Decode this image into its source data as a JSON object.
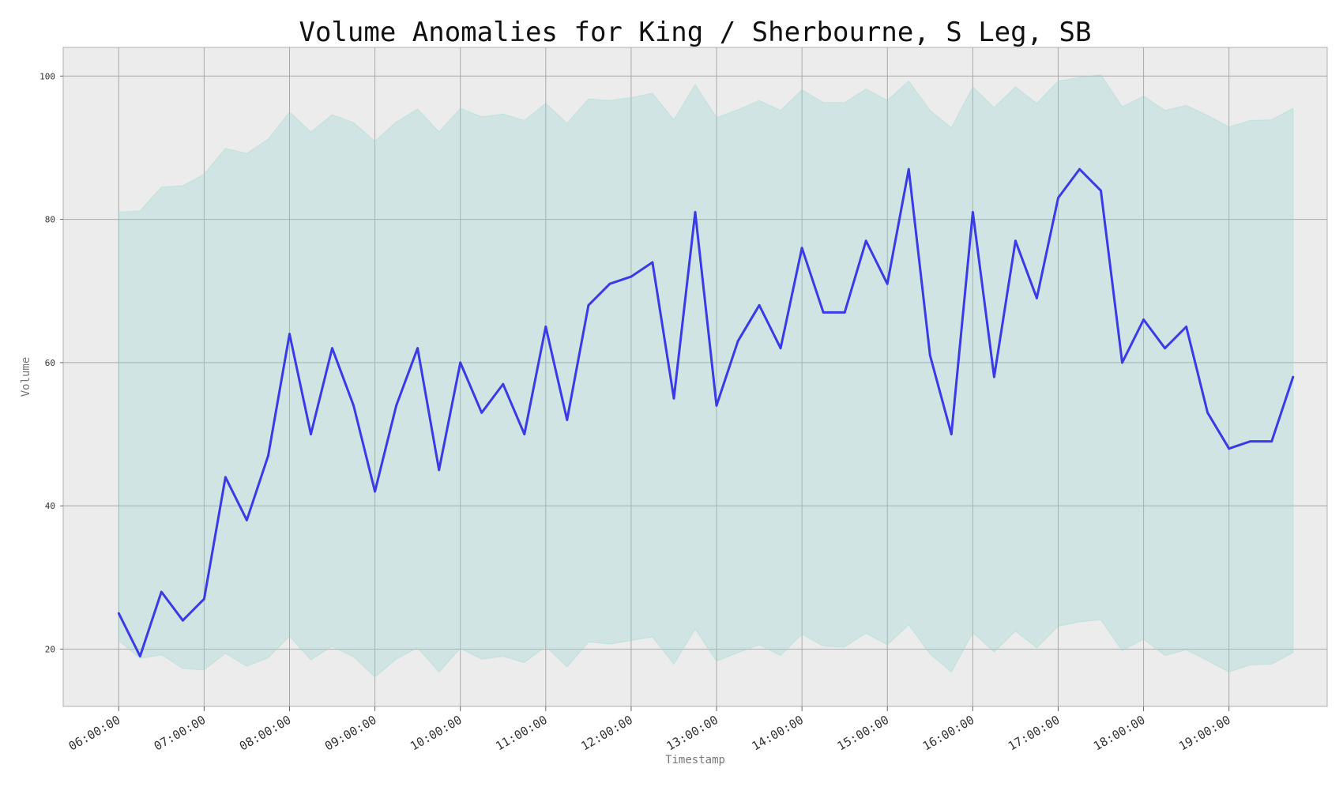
{
  "chart_data": {
    "type": "line",
    "title": "Volume Anomalies for King / Sherbourne, S Leg, SB",
    "xlabel": "Timestamp",
    "ylabel": "Volume",
    "ylim": [
      12,
      104
    ],
    "yticks": [
      20,
      40,
      60,
      80,
      100
    ],
    "x_range_hours": [
      5.35,
      20.15
    ],
    "xtick_hours": [
      6,
      7,
      8,
      9,
      10,
      11,
      12,
      13,
      14,
      15,
      16,
      17,
      18,
      19
    ],
    "xtick_labels": [
      "06:00:00",
      "07:00:00",
      "08:00:00",
      "09:00:00",
      "10:00:00",
      "11:00:00",
      "12:00:00",
      "13:00:00",
      "14:00:00",
      "15:00:00",
      "16:00:00",
      "17:00:00",
      "18:00:00",
      "19:00:00"
    ],
    "grid": true,
    "x": [
      "06:00:00",
      "06:15:00",
      "06:30:00",
      "06:45:00",
      "07:00:00",
      "07:15:00",
      "07:30:00",
      "07:45:00",
      "08:00:00",
      "08:15:00",
      "08:30:00",
      "08:45:00",
      "09:00:00",
      "09:15:00",
      "09:30:00",
      "09:45:00",
      "10:00:00",
      "10:15:00",
      "10:30:00",
      "10:45:00",
      "11:00:00",
      "11:15:00",
      "11:30:00",
      "11:45:00",
      "12:00:00",
      "12:15:00",
      "12:30:00",
      "12:45:00",
      "13:00:00",
      "13:15:00",
      "13:30:00",
      "13:45:00",
      "14:00:00",
      "14:15:00",
      "14:30:00",
      "14:45:00",
      "15:00:00",
      "15:15:00",
      "15:30:00",
      "15:45:00",
      "16:00:00",
      "16:15:00",
      "16:30:00",
      "16:45:00",
      "17:00:00",
      "17:15:00",
      "17:30:00",
      "17:45:00",
      "18:00:00",
      "18:15:00",
      "18:30:00",
      "18:45:00",
      "19:00:00",
      "19:15:00",
      "19:30:00",
      "19:45:00"
    ],
    "series": [
      {
        "values": [
          25,
          19,
          28,
          24,
          27,
          44,
          38,
          47,
          64,
          50,
          62,
          54,
          42,
          54,
          62,
          45,
          60,
          53,
          57,
          50,
          65,
          52,
          68,
          71,
          72,
          74,
          55,
          81,
          54,
          63,
          68,
          62,
          76,
          67,
          67,
          77,
          71,
          87,
          61,
          50,
          81,
          58,
          77,
          69,
          83,
          87,
          84,
          60,
          66,
          62,
          65,
          53,
          48,
          49,
          49,
          58
        ],
        "color": "#3a3ae8"
      }
    ],
    "band": {
      "upper": [
        81,
        81.2,
        84.5,
        84.7,
        86.3,
        89.9,
        89.2,
        91.2,
        95,
        92.2,
        94.6,
        93.5,
        90.9,
        93.6,
        95.4,
        92.2,
        95.5,
        94.3,
        94.7,
        93.8,
        96.2,
        93.4,
        96.8,
        96.6,
        97,
        97.6,
        93.9,
        98.8,
        94.2,
        95.3,
        96.6,
        95.2,
        98.1,
        96.3,
        96.3,
        98.2,
        96.6,
        99.3,
        95.2,
        92.8,
        98.5,
        95.6,
        98.5,
        96.2,
        99.3,
        99.8,
        100.2,
        95.7,
        97.2,
        95.2,
        95.9,
        94.5,
        92.9,
        93.8,
        93.9,
        95.5
      ],
      "lower": [
        21.2,
        18.7,
        19.2,
        17.3,
        17.1,
        19.4,
        17.6,
        18.8,
        21.8,
        18.5,
        20.4,
        18.9,
        16.1,
        18.6,
        20.2,
        16.8,
        20.1,
        18.6,
        19,
        18.1,
        20.4,
        17.5,
        21,
        20.7,
        21.2,
        21.7,
        17.9,
        22.8,
        18.3,
        19.5,
        20.6,
        19.1,
        22.1,
        20.4,
        20.3,
        22.2,
        20.6,
        23.4,
        19.3,
        16.8,
        22.3,
        19.6,
        22.5,
        20.2,
        23.2,
        23.8,
        24.1,
        19.8,
        21.4,
        19.1,
        19.9,
        18.4,
        16.8,
        17.8,
        17.9,
        19.5
      ],
      "color": "#8fd5cc"
    },
    "colors": {
      "plot_background": "#ececec",
      "grid": "#a9a9a9",
      "line": "#3a3ae8",
      "band_fill": "#8fd5cc"
    }
  }
}
